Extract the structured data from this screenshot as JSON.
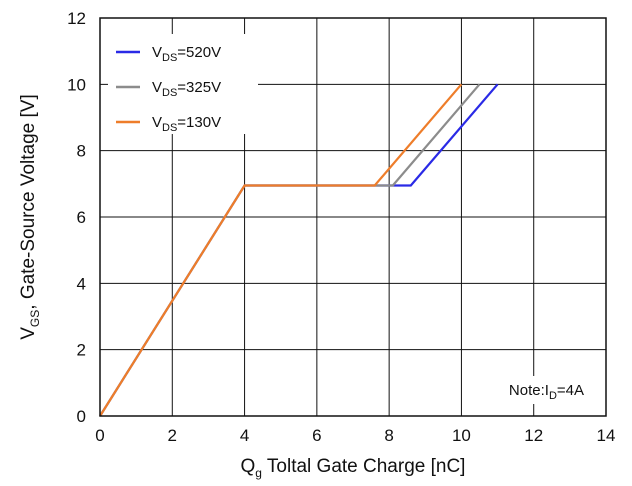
{
  "chart_data": {
    "type": "line",
    "xlabel": {
      "main": "Q",
      "sub": "g",
      "rest": " Toltal Gate Charge [nC]"
    },
    "ylabel": {
      "main": "V",
      "sub": "GS",
      "rest": ", Gate-Source Voltage [V]"
    },
    "xlim": [
      0,
      14
    ],
    "ylim": [
      0,
      12
    ],
    "x_ticks": [
      0,
      2,
      4,
      6,
      8,
      10,
      12,
      14
    ],
    "y_ticks": [
      0,
      2,
      4,
      6,
      8,
      10,
      12
    ],
    "grid": true,
    "legend_position": "top-left",
    "series": [
      {
        "name": {
          "main": "V",
          "sub": "DS",
          "rest": "=520V"
        },
        "color": "#2a2ae6",
        "points": [
          [
            0,
            0
          ],
          [
            4,
            6.95
          ],
          [
            8.6,
            6.95
          ],
          [
            11.0,
            10.0
          ]
        ]
      },
      {
        "name": {
          "main": "V",
          "sub": "DS",
          "rest": "=325V"
        },
        "color": "#8c8c8c",
        "points": [
          [
            0,
            0
          ],
          [
            4,
            6.95
          ],
          [
            8.1,
            6.95
          ],
          [
            10.5,
            10.0
          ]
        ]
      },
      {
        "name": {
          "main": "V",
          "sub": "DS",
          "rest": "=130V"
        },
        "color": "#ee7d2a",
        "points": [
          [
            0,
            0
          ],
          [
            4,
            6.95
          ],
          [
            7.6,
            6.95
          ],
          [
            10.0,
            10.0
          ]
        ]
      }
    ],
    "annotation": {
      "main": "Note:I",
      "sub": "D",
      "rest": "=4A"
    }
  }
}
